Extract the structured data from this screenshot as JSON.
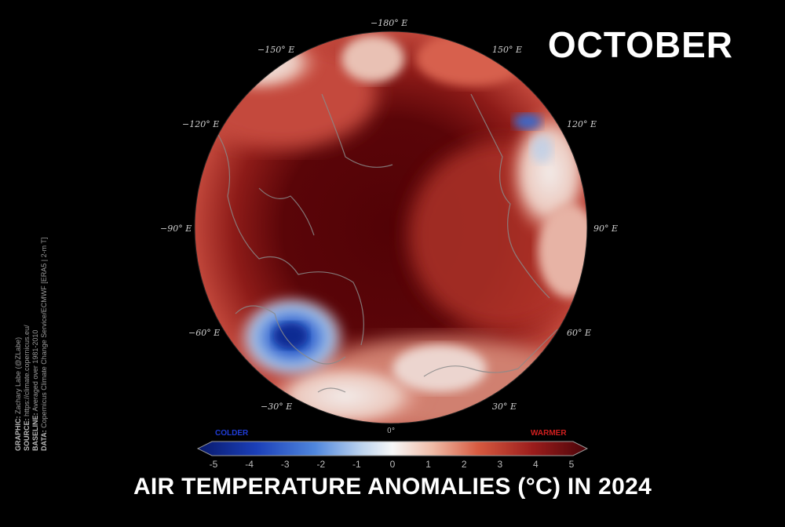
{
  "month": "OCTOBER",
  "title": "AIR TEMPERATURE ANOMALIES (°C) IN 2024",
  "longitude_labels": [
    {
      "id": "lon-180",
      "text": "−180° E"
    },
    {
      "id": "lon-150w",
      "text": "−150° E"
    },
    {
      "id": "lon-150e",
      "text": "150° E"
    },
    {
      "id": "lon-120w",
      "text": "−120° E"
    },
    {
      "id": "lon-120e",
      "text": "120° E"
    },
    {
      "id": "lon-90w",
      "text": "−90° E"
    },
    {
      "id": "lon-90e",
      "text": "90° E"
    },
    {
      "id": "lon-60w",
      "text": "−60° E"
    },
    {
      "id": "lon-60e",
      "text": "60° E"
    },
    {
      "id": "lon-30w",
      "text": "−30° E"
    },
    {
      "id": "lon-30e",
      "text": "30° E"
    },
    {
      "id": "lon-0",
      "text": "0°"
    }
  ],
  "colorbar": {
    "colder_label": "COLDER",
    "warmer_label": "WARMER",
    "ticks": [
      "-5",
      "-4",
      "-3",
      "-2",
      "-1",
      "0",
      "1",
      "2",
      "3",
      "4",
      "5"
    ],
    "range": [
      -5,
      5
    ],
    "colors": {
      "cold_end": "#08196b",
      "cold": "#2a5bd7",
      "neutral": "#f5f5f5",
      "warm": "#d6503a",
      "warm_end": "#4a0409"
    }
  },
  "credits": [
    {
      "label": "GRAPHIC:",
      "value": " Zachary Labe (@ZLabe)"
    },
    {
      "label": "SOURCE:",
      "value": " https://climate.copernicus.eu/"
    },
    {
      "label": "BASELINE:",
      "value": " Averaged over 1981-2010"
    },
    {
      "label": "DATA:",
      "value": " Copernicus Climate Change Service/ECMWF [ERA5 | 2-m T]"
    }
  ]
}
